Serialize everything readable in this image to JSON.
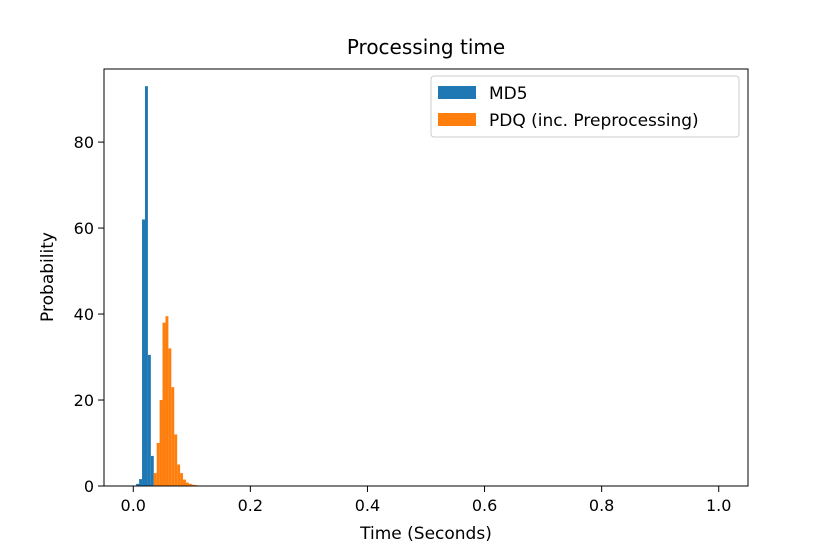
{
  "chart_data": {
    "type": "bar",
    "title": "Processing time",
    "xlabel": "Time (Seconds)",
    "ylabel": "Probability",
    "xlim": [
      -0.05,
      1.05
    ],
    "ylim": [
      0,
      97
    ],
    "xticks": [
      0.0,
      0.2,
      0.4,
      0.6,
      0.8,
      1.0
    ],
    "xtick_labels": [
      "0.0",
      "0.2",
      "0.4",
      "0.6",
      "0.8",
      "1.0"
    ],
    "yticks": [
      0,
      20,
      40,
      60,
      80
    ],
    "ytick_labels": [
      "0",
      "20",
      "40",
      "60",
      "80"
    ],
    "grid": false,
    "legend_position": "top-right",
    "bin_width": 0.005,
    "series": [
      {
        "name": "MD5",
        "color": "#1f77b4",
        "x": [
          0.005,
          0.01,
          0.015,
          0.02,
          0.025,
          0.03
        ],
        "values": [
          0.5,
          1.6,
          62,
          93,
          30.5,
          7
        ]
      },
      {
        "name": "PDQ (inc. Preprocessing)",
        "color": "#ff7f0e",
        "x": [
          0.035,
          0.04,
          0.045,
          0.05,
          0.055,
          0.06,
          0.065,
          0.07,
          0.075,
          0.08,
          0.085,
          0.09,
          0.095,
          0.1,
          0.105,
          0.11,
          0.115
        ],
        "values": [
          3,
          10,
          20,
          38,
          39.5,
          32,
          23,
          12,
          5,
          3,
          1.5,
          0.8,
          0.5,
          0.3,
          0.2,
          0.1,
          0.1
        ]
      }
    ]
  }
}
